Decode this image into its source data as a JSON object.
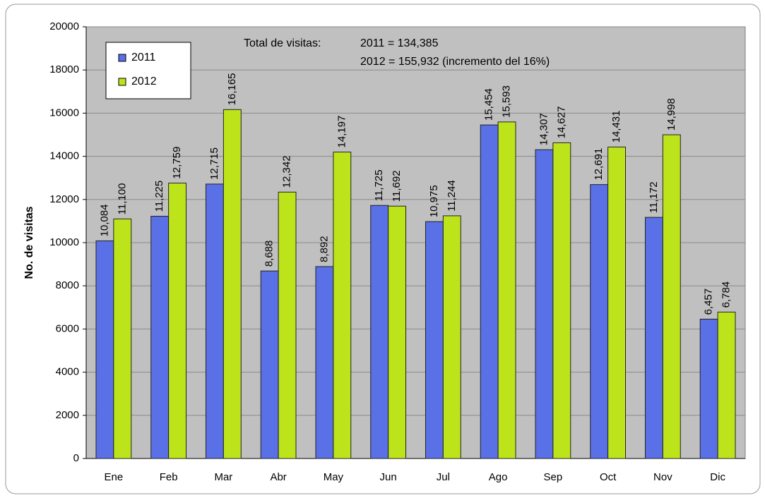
{
  "chart_data": {
    "type": "bar",
    "y_label": "No. de visitas",
    "annotations": [
      "Total de visitas:",
      "2011 = 134,385",
      "2012 = 155,932 (incremento del 16%)"
    ],
    "categories": [
      "Ene",
      "Feb",
      "Mar",
      "Abr",
      "May",
      "Jun",
      "Jul",
      "Ago",
      "Sep",
      "Oct",
      "Nov",
      "Dic"
    ],
    "series": [
      {
        "name": "2011",
        "color": "#5a70e6",
        "values": [
          10084,
          11225,
          12715,
          8688,
          8892,
          11725,
          10975,
          15454,
          14307,
          12691,
          11172,
          6457
        ],
        "value_labels": [
          "10,084",
          "11,225",
          "12,715",
          "8,688",
          "8,892",
          "11,725",
          "10,975",
          "15,454",
          "14,307",
          "12,691",
          "11,172",
          "6,457"
        ]
      },
      {
        "name": "2012",
        "color": "#bde41a",
        "values": [
          11100,
          12759,
          16165,
          12342,
          14197,
          11692,
          11244,
          15593,
          14627,
          14431,
          14998,
          6784
        ],
        "value_labels": [
          "11,100",
          "12,759",
          "16,165",
          "12,342",
          "14,197",
          "11,692",
          "11,244",
          "15,593",
          "14,627",
          "14,431",
          "14,998",
          "6,784"
        ]
      }
    ],
    "ylim": [
      0,
      20000
    ],
    "yticks": [
      0,
      2000,
      4000,
      6000,
      8000,
      10000,
      12000,
      14000,
      16000,
      18000,
      20000
    ],
    "grid": true,
    "legend": "upper left"
  }
}
